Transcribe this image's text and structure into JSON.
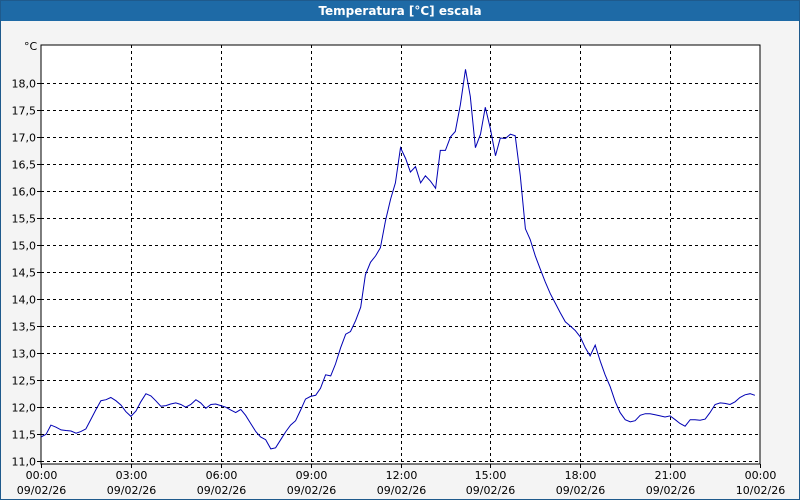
{
  "window": {
    "title": "Temperatura [°C] escala"
  },
  "chart_data": {
    "type": "line",
    "title": "Temperatura [°C] escala",
    "ylabel": "°C",
    "xlabel": "",
    "ylim": [
      10.95,
      18.7
    ],
    "xlim": [
      0,
      24
    ],
    "y_ticks": [
      "11,0",
      "11,5",
      "12,0",
      "12,5",
      "13,0",
      "13,5",
      "14,0",
      "14,5",
      "15,0",
      "15,5",
      "16,0",
      "16,5",
      "17,0",
      "17,5",
      "18,0"
    ],
    "x_ticks": [
      {
        "time": "00:00",
        "date": "09/02/26"
      },
      {
        "time": "03:00",
        "date": "09/02/26"
      },
      {
        "time": "06:00",
        "date": "09/02/26"
      },
      {
        "time": "09:00",
        "date": "09/02/26"
      },
      {
        "time": "12:00",
        "date": "09/02/26"
      },
      {
        "time": "15:00",
        "date": "09/02/26"
      },
      {
        "time": "18:00",
        "date": "09/02/26"
      },
      {
        "time": "21:00",
        "date": "09/02/26"
      },
      {
        "time": "00:00",
        "date": "10/02/26"
      }
    ],
    "grid": true,
    "colors": {
      "line": "#0000b4",
      "grid": "#000000",
      "title_bar": "#1e6aa6"
    },
    "series": [
      {
        "x": [
          0,
          0.17,
          0.33,
          0.5,
          0.67,
          0.83,
          1,
          1.17,
          1.33,
          1.5,
          1.67,
          1.83,
          2,
          2.17,
          2.33,
          2.5,
          2.67,
          2.83,
          3,
          3.17,
          3.33,
          3.5,
          3.67,
          3.83,
          4,
          4.17,
          4.33,
          4.5,
          4.67,
          4.83,
          5,
          5.17,
          5.33,
          5.5,
          5.67,
          5.83,
          6,
          6.17,
          6.33,
          6.5,
          6.67,
          6.83,
          7,
          7.17,
          7.33,
          7.5,
          7.67,
          7.83,
          8,
          8.17,
          8.33,
          8.5,
          8.67,
          8.83,
          9,
          9.17,
          9.33,
          9.5,
          9.67,
          9.83,
          10,
          10.17,
          10.33,
          10.5,
          10.67,
          10.83,
          11,
          11.17,
          11.33,
          11.5,
          11.67,
          11.83,
          12,
          12.17,
          12.33,
          12.5,
          12.67,
          12.83,
          13,
          13.17,
          13.33,
          13.5,
          13.67,
          13.83,
          14,
          14.17,
          14.33,
          14.5,
          14.67,
          14.83,
          15,
          15.17,
          15.33,
          15.5,
          15.67,
          15.83,
          16,
          16.17,
          16.33,
          16.5,
          16.67,
          16.83,
          17,
          17.17,
          17.33,
          17.5,
          17.67,
          17.83,
          18,
          18.17,
          18.33,
          18.5,
          18.67,
          18.83,
          19,
          19.17,
          19.33,
          19.5,
          19.67,
          19.83,
          20,
          20.17,
          20.33,
          20.5,
          20.67,
          20.83,
          21,
          21.17,
          21.33,
          21.5,
          21.67,
          21.83,
          22,
          22.17,
          22.33,
          22.5,
          22.67,
          22.83,
          23,
          23.17,
          23.33,
          23.5,
          23.67,
          23.83
        ],
        "y": [
          11.45,
          11.5,
          11.67,
          11.63,
          11.58,
          11.57,
          11.56,
          11.52,
          11.55,
          11.6,
          11.78,
          11.95,
          12.12,
          12.14,
          12.18,
          12.12,
          12.04,
          11.92,
          11.83,
          11.93,
          12.1,
          12.25,
          12.21,
          12.12,
          12.02,
          12.03,
          12.06,
          12.08,
          12.05,
          12,
          12.05,
          12.14,
          12.08,
          11.98,
          12.05,
          12.06,
          12.03,
          12,
          11.95,
          11.9,
          11.96,
          11.85,
          11.7,
          11.55,
          11.45,
          11.4,
          11.23,
          11.25,
          11.4,
          11.55,
          11.67,
          11.75,
          11.95,
          12.15,
          12.2,
          12.22,
          12.35,
          12.6,
          12.58,
          12.8,
          13.1,
          13.35,
          13.4,
          13.6,
          13.85,
          14.45,
          14.68,
          14.8,
          14.95,
          15.45,
          15.85,
          16.15,
          16.8,
          16.6,
          16.35,
          16.45,
          16.15,
          16.28,
          16.18,
          16.05,
          16.75,
          16.75,
          17,
          17.1,
          17.6,
          18.25,
          17.75,
          16.8,
          17.05,
          17.55,
          17.15,
          16.65,
          16.98,
          16.97,
          17.05,
          17.02,
          16.28,
          15.3,
          15.1,
          14.8,
          14.55,
          14.32,
          14.1,
          13.92,
          13.75,
          13.58,
          13.5,
          13.42,
          13.3,
          13.1,
          12.95,
          13.15,
          12.85,
          12.6,
          12.38,
          12.1,
          11.9,
          11.77,
          11.73,
          11.75,
          11.85,
          11.88,
          11.88,
          11.86,
          11.84,
          11.82,
          11.84,
          11.77,
          11.7,
          11.65,
          11.77,
          11.77,
          11.76,
          11.78,
          11.9,
          12.05,
          12.08,
          12.07,
          12.05,
          12.1,
          12.18,
          12.23,
          12.25,
          12.22
        ]
      }
    ]
  }
}
